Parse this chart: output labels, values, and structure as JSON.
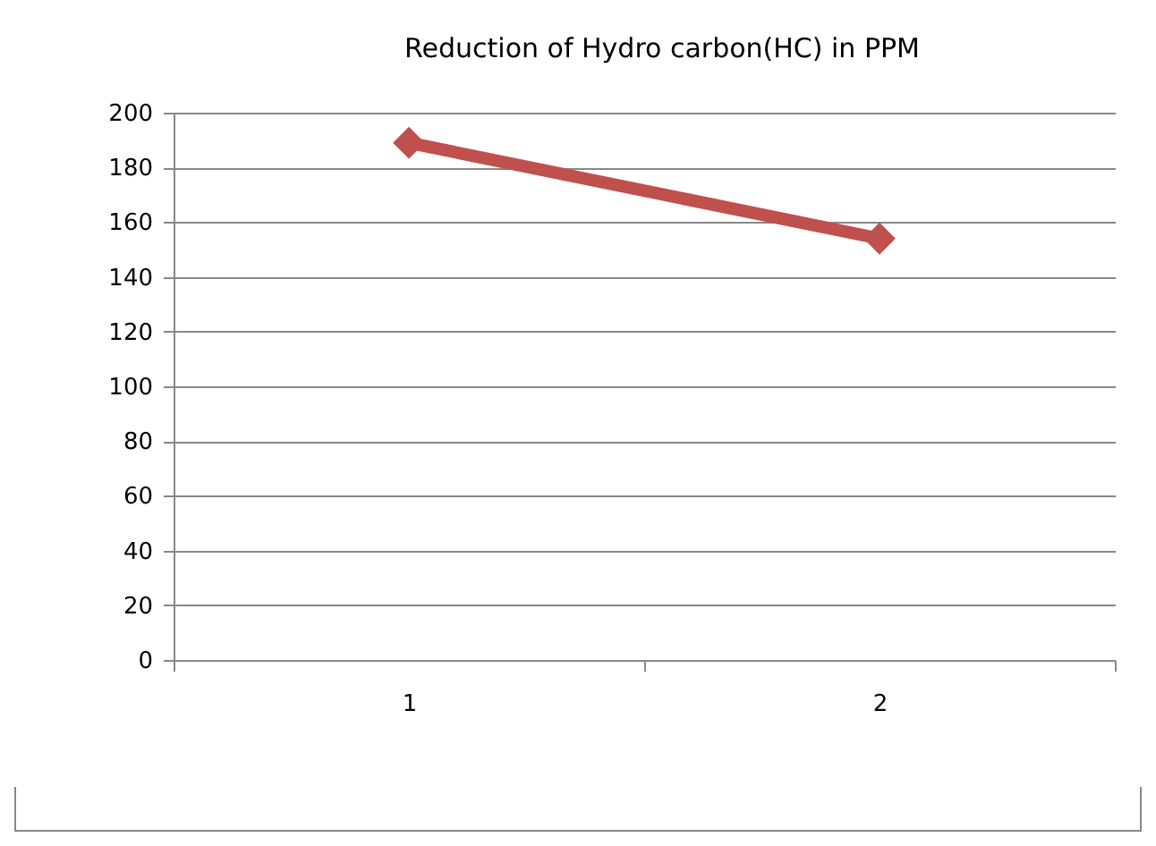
{
  "chart_data": {
    "type": "line",
    "title": "Reduction of Hydro carbon(HC) in PPM",
    "categories": [
      "1",
      "2"
    ],
    "series": [
      {
        "color": "#c0504d",
        "values": [
          189,
          154
        ]
      }
    ],
    "ylim": [
      0,
      200
    ],
    "yticks": [
      0,
      20,
      40,
      60,
      80,
      100,
      120,
      140,
      160,
      180,
      200
    ],
    "grid": "y",
    "legend": false,
    "marker": "diamond",
    "line_style": "solid"
  }
}
